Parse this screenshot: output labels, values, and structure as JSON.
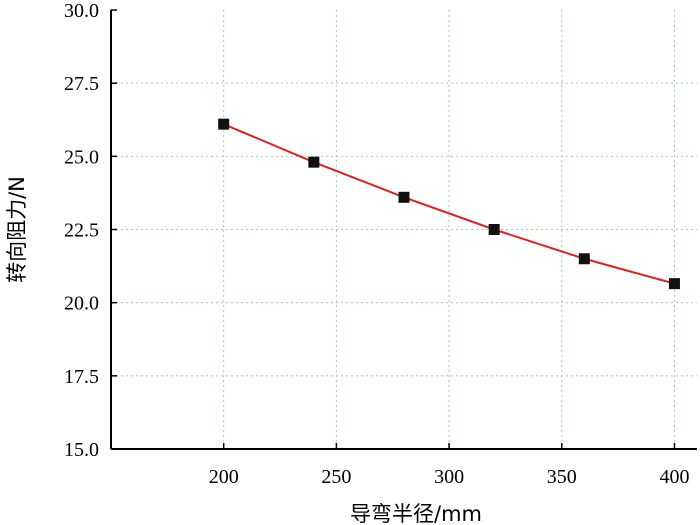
{
  "chart_data": {
    "type": "line",
    "title": "",
    "xlabel": "导弯半径/mm",
    "ylabel": "转向阻力/N",
    "xlim": [
      150,
      410
    ],
    "ylim": [
      15.0,
      30.0
    ],
    "x_ticks": [
      200,
      250,
      300,
      350,
      400
    ],
    "y_ticks": [
      15.0,
      17.5,
      20.0,
      22.5,
      25.0,
      27.5,
      30.0
    ],
    "x_tick_labels": [
      "200",
      "250",
      "300",
      "350",
      "400"
    ],
    "y_tick_labels": [
      "15.0",
      "17.5",
      "20.0",
      "22.5",
      "25.0",
      "27.5",
      "30.0"
    ],
    "grid": true,
    "legend": "none",
    "series": [
      {
        "x": [
          200,
          240,
          280,
          320,
          360,
          400
        ],
        "values": [
          26.1,
          24.8,
          23.6,
          22.5,
          21.5,
          20.65
        ],
        "marker": "square",
        "marker_color": "#111111",
        "line_color": "#e02020"
      }
    ]
  }
}
